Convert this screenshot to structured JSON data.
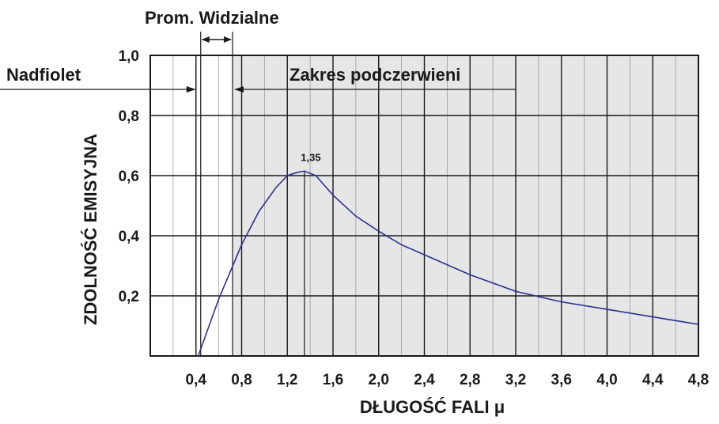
{
  "chart_data": {
    "type": "line",
    "xlabel": "DŁUGOŚĆ FALI  μ",
    "ylabel": "ZDOLNOŚĆ EMISYJNA",
    "xlim": [
      0.0,
      4.8
    ],
    "ylim": [
      0.0,
      1.0
    ],
    "x_ticks": [
      0.4,
      0.8,
      1.2,
      1.6,
      2.0,
      2.4,
      2.8,
      3.2,
      3.6,
      4.0,
      4.4,
      4.8
    ],
    "x_tick_labels": [
      "0,4",
      "0,8",
      "1,2",
      "1,6",
      "2,0",
      "2,4",
      "2,8",
      "3,2",
      "3,6",
      "4,0",
      "4,4",
      "4,8"
    ],
    "y_ticks": [
      0.2,
      0.4,
      0.6,
      0.8,
      1.0
    ],
    "y_tick_labels": [
      "0,2",
      "0,4",
      "0,6",
      "0,8",
      "1,0"
    ],
    "grid": true,
    "minor_x_grid_step": 0.2,
    "series": [
      {
        "x": [
          0.42,
          0.6,
          0.8,
          0.95,
          1.1,
          1.2,
          1.28,
          1.35,
          1.45,
          1.6,
          1.8,
          2.0,
          2.2,
          2.5,
          2.8,
          3.2,
          3.6,
          4.0,
          4.4,
          4.8
        ],
        "y": [
          0.0,
          0.19,
          0.37,
          0.48,
          0.56,
          0.6,
          0.61,
          0.615,
          0.6,
          0.535,
          0.465,
          0.415,
          0.37,
          0.32,
          0.27,
          0.215,
          0.18,
          0.155,
          0.13,
          0.105
        ],
        "color": "#2e3192"
      }
    ],
    "peak_annotation": {
      "x": 1.35,
      "text": "1,35"
    },
    "bands": {
      "visible": {
        "label": "Prom. Widzialne",
        "x_start": 0.4,
        "x_end": 0.72
      },
      "ultraviolet": {
        "label": "Nadfiolet",
        "x_end": 0.4
      },
      "infrared": {
        "label": "Zakres podczerwieni",
        "x_start": 0.72,
        "x_end": 3.2
      }
    },
    "infrared_shading_color": "#e6e6e6"
  }
}
